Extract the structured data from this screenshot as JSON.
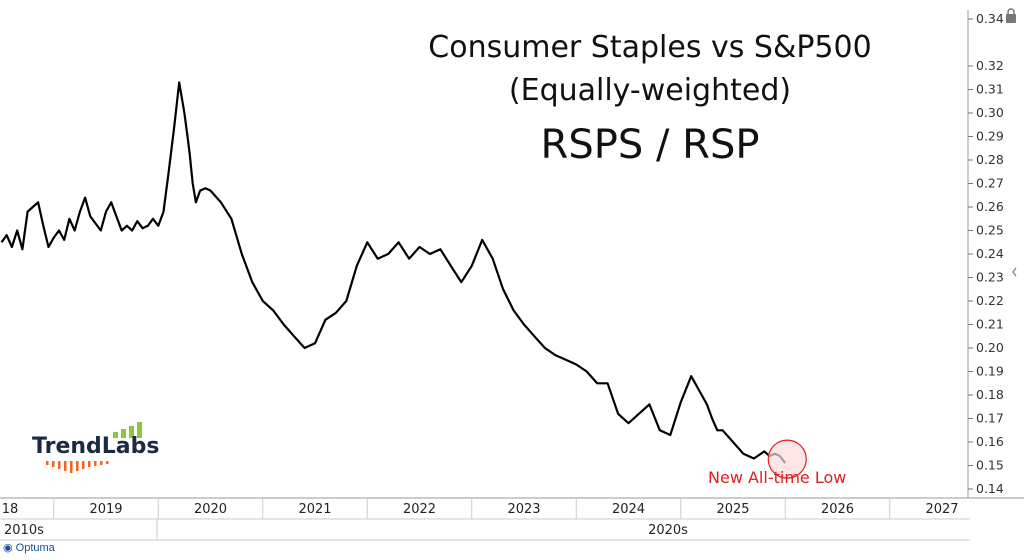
{
  "titles": {
    "line1": "Consumer Staples vs S&P500",
    "line2": "(Equally-weighted)",
    "line3": "RSPS / RSP"
  },
  "annotation": "New All-time Low",
  "logo_text": "TrendLabs",
  "footer_brand": "Optuma",
  "decades": [
    "2010s",
    "2020s"
  ],
  "colors": {
    "line": "#000000",
    "highlight": "#e02020",
    "highlight_fill": "#f9dada",
    "logo_bars": "#8dc63f",
    "logo_ticks": "#f26522"
  },
  "chart_data": {
    "type": "line",
    "title": "Consumer Staples vs S&P500 (Equally-weighted) RSPS / RSP",
    "xlabel": "",
    "ylabel": "",
    "x_tick_labels": [
      "18",
      "2019",
      "2020",
      "2021",
      "2022",
      "2023",
      "2024",
      "2025",
      "2026",
      "2027"
    ],
    "y_tick_labels": [
      "0.14",
      "0.15",
      "0.16",
      "0.17",
      "0.18",
      "0.19",
      "0.20",
      "0.21",
      "0.22",
      "0.23",
      "0.24",
      "0.25",
      "0.26",
      "0.27",
      "0.28",
      "0.29",
      "0.30",
      "0.31",
      "0.32",
      "0.34"
    ],
    "ylim": [
      0.14,
      0.34
    ],
    "xlim": [
      2018.0,
      2027.3
    ],
    "grid": false,
    "series": [
      {
        "x": [
          2018.0,
          2018.05,
          2018.1,
          2018.15,
          2018.2,
          2018.25,
          2018.3,
          2018.35,
          2018.4,
          2018.45,
          2018.5,
          2018.55,
          2018.6,
          2018.65,
          2018.7,
          2018.75,
          2018.8,
          2018.85,
          2018.9,
          2018.95,
          2019.0,
          2019.05,
          2019.1,
          2019.15,
          2019.2,
          2019.25,
          2019.3,
          2019.35,
          2019.4,
          2019.45,
          2019.5,
          2019.55,
          2019.6,
          2019.65,
          2019.7,
          2019.75,
          2019.78,
          2019.8,
          2019.83,
          2019.86,
          2019.9,
          2019.95,
          2020.0,
          2020.1,
          2020.2,
          2020.3,
          2020.4,
          2020.5,
          2020.6,
          2020.7,
          2020.8,
          2020.9,
          2021.0,
          2021.1,
          2021.2,
          2021.3,
          2021.4,
          2021.5,
          2021.6,
          2021.7,
          2021.8,
          2021.9,
          2022.0,
          2022.1,
          2022.2,
          2022.3,
          2022.4,
          2022.5,
          2022.6,
          2022.7,
          2022.8,
          2022.9,
          2023.0,
          2023.1,
          2023.2,
          2023.3,
          2023.4,
          2023.5,
          2023.6,
          2023.7,
          2023.8,
          2023.9,
          2024.0,
          2024.1,
          2024.2,
          2024.3,
          2024.4,
          2024.5,
          2024.6,
          2024.7,
          2024.75,
          2024.8,
          2024.85,
          2024.9,
          2025.0,
          2025.1,
          2025.2,
          2025.3,
          2025.35,
          2025.4,
          2025.45,
          2025.5
        ],
        "values": [
          0.245,
          0.248,
          0.243,
          0.25,
          0.242,
          0.258,
          0.26,
          0.262,
          0.252,
          0.243,
          0.247,
          0.25,
          0.246,
          0.255,
          0.25,
          0.258,
          0.264,
          0.256,
          0.253,
          0.25,
          0.258,
          0.262,
          0.256,
          0.25,
          0.252,
          0.25,
          0.254,
          0.251,
          0.252,
          0.255,
          0.252,
          0.258,
          0.275,
          0.293,
          0.313,
          0.3,
          0.29,
          0.283,
          0.27,
          0.262,
          0.267,
          0.268,
          0.267,
          0.262,
          0.255,
          0.24,
          0.228,
          0.22,
          0.216,
          0.21,
          0.205,
          0.2,
          0.202,
          0.212,
          0.215,
          0.22,
          0.235,
          0.245,
          0.238,
          0.24,
          0.245,
          0.238,
          0.243,
          0.24,
          0.242,
          0.235,
          0.228,
          0.235,
          0.246,
          0.238,
          0.225,
          0.216,
          0.21,
          0.205,
          0.2,
          0.197,
          0.195,
          0.193,
          0.19,
          0.185,
          0.185,
          0.172,
          0.168,
          0.172,
          0.176,
          0.165,
          0.163,
          0.177,
          0.188,
          0.18,
          0.176,
          0.17,
          0.165,
          0.165,
          0.16,
          0.155,
          0.153,
          0.156,
          0.154,
          0.155,
          0.154,
          0.151
        ]
      }
    ]
  }
}
